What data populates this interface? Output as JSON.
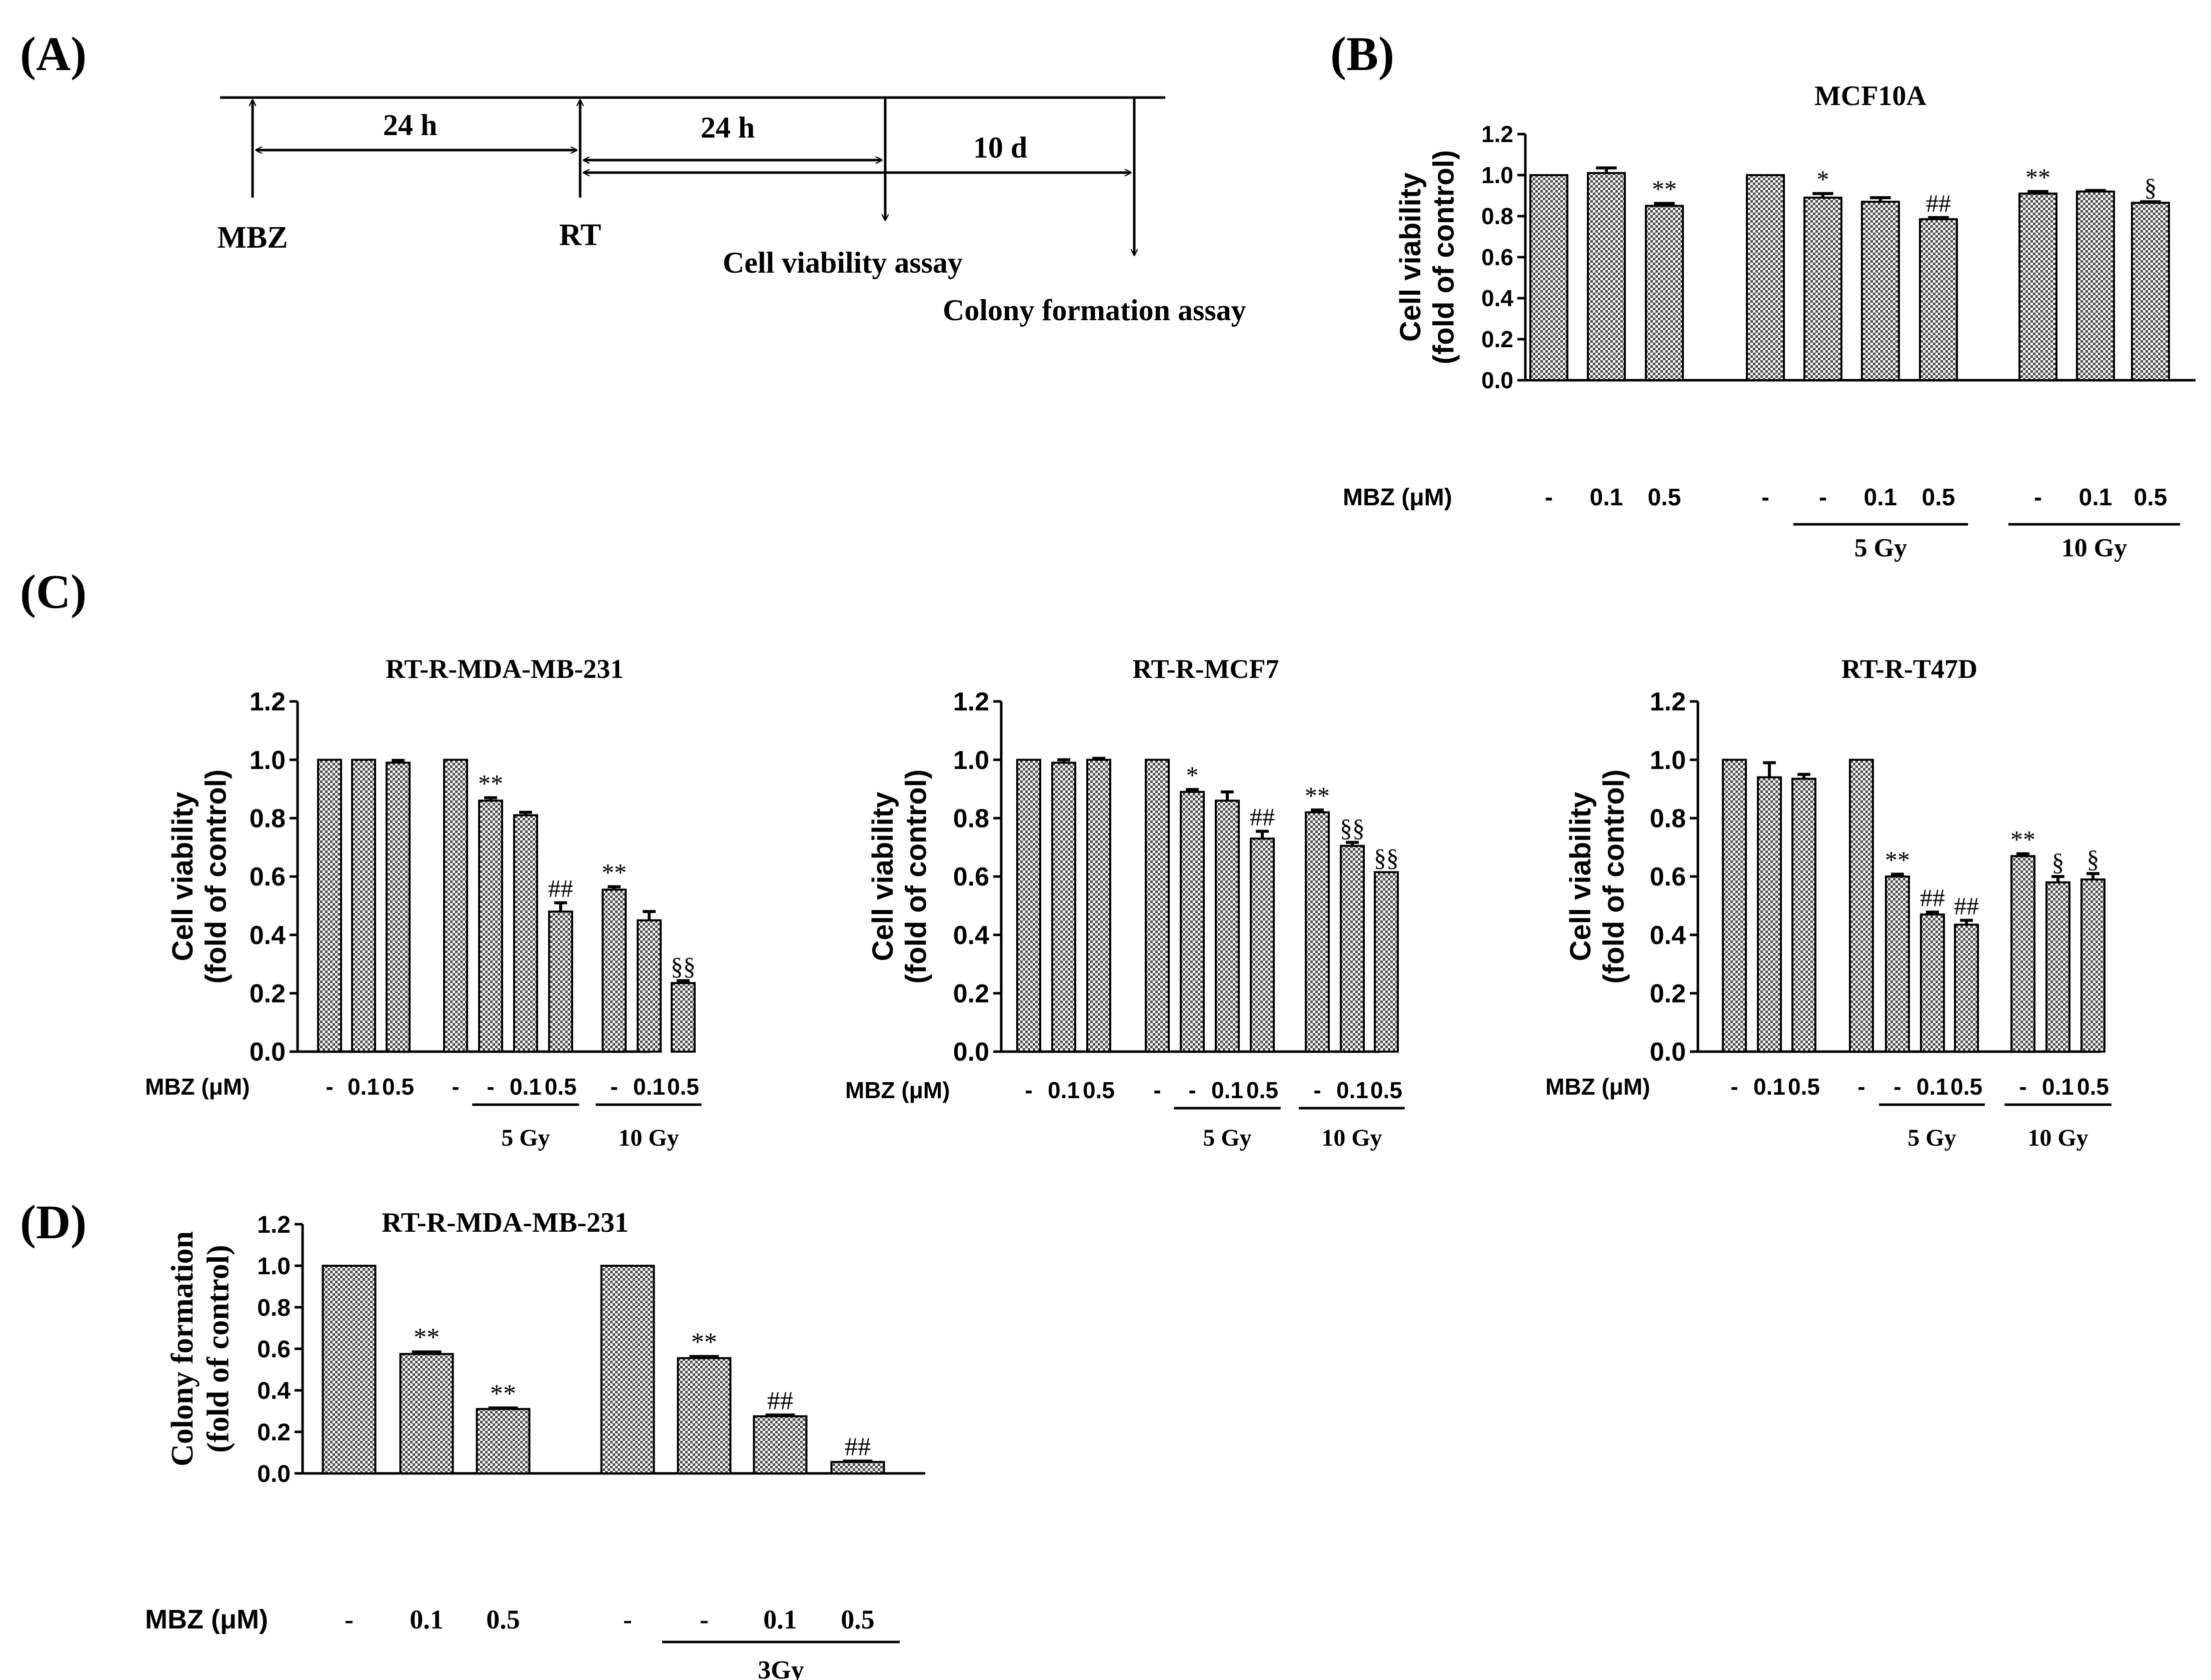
{
  "figure": {
    "colors": {
      "ink": "#000000",
      "bar_fill": "#b8b8b8",
      "background": "#ffffff"
    }
  },
  "panel_labels": [
    "(A)",
    "(B)",
    "(C)",
    "(D)"
  ],
  "timeline": {
    "intervals": [
      "24 h",
      "24 h",
      "10 d"
    ],
    "events": [
      "MBZ",
      "RT",
      "Cell viability  assay",
      "Colony  formation  assay"
    ]
  },
  "chart_data": [
    {
      "id": "B",
      "type": "bar",
      "title": "MCF10A",
      "ylabel": [
        "Cell viability",
        "(fold of control)"
      ],
      "ylim": [
        0,
        1.2
      ],
      "yticks": [
        "0.0",
        "0.2",
        "0.4",
        "0.6",
        "0.8",
        "1.0",
        "1.2"
      ],
      "x_prefix": "MBZ  (μM)",
      "categories": [
        "-",
        "0.1",
        "0.5",
        "-",
        "-",
        "0.1",
        "0.5",
        "-",
        "0.1",
        "0.5"
      ],
      "values": [
        1.0,
        1.01,
        0.85,
        1.0,
        0.89,
        0.87,
        0.785,
        0.91,
        0.92,
        0.865
      ],
      "errors": [
        0,
        0.025,
        0.012,
        0,
        0.02,
        0.02,
        0.008,
        0.01,
        0.005,
        0.005
      ],
      "annotations": [
        "",
        "",
        "**",
        "",
        "*",
        "",
        "##",
        "**",
        "",
        "§"
      ],
      "groups": [
        {
          "label": "5 Gy"
        },
        {
          "label": "10 Gy"
        }
      ]
    },
    {
      "id": "C1",
      "type": "bar",
      "title": "RT-R-MDA-MB-231",
      "ylabel": [
        "Cell viability",
        "(fold of control)"
      ],
      "ylim": [
        0,
        1.2
      ],
      "yticks": [
        "0.0",
        "0.2",
        "0.4",
        "0.6",
        "0.8",
        "1.0",
        "1.2"
      ],
      "x_prefix": "MBZ  (μM)",
      "categories": [
        "-",
        "0.1",
        "0.5",
        "-",
        "-",
        "0.1",
        "0.5",
        "-",
        "0.1",
        "0.5"
      ],
      "values": [
        1.0,
        1.0,
        0.99,
        1.0,
        0.86,
        0.81,
        0.48,
        0.555,
        0.45,
        0.235
      ],
      "errors": [
        0,
        0,
        0.008,
        0,
        0.01,
        0.01,
        0.03,
        0.01,
        0.03,
        0.008
      ],
      "annotations": [
        "",
        "",
        "",
        "",
        "**",
        "",
        "##",
        "**",
        "",
        "§§"
      ],
      "groups": [
        {
          "label": "5 Gy"
        },
        {
          "label": "10 Gy"
        }
      ]
    },
    {
      "id": "C2",
      "type": "bar",
      "title": "RT-R-MCF7",
      "ylabel": [
        "Cell viability",
        "(fold of control)"
      ],
      "ylim": [
        0,
        1.2
      ],
      "yticks": [
        "0.0",
        "0.2",
        "0.4",
        "0.6",
        "0.8",
        "1.0",
        "1.2"
      ],
      "x_prefix": "MBZ  (μM)",
      "categories": [
        "-",
        "0.1",
        "0.5",
        "-",
        "-",
        "0.1",
        "0.5",
        "-",
        "0.1",
        "0.5"
      ],
      "values": [
        1.0,
        0.99,
        1.0,
        1.0,
        0.89,
        0.86,
        0.73,
        0.82,
        0.705,
        0.615
      ],
      "errors": [
        0,
        0.01,
        0.005,
        0,
        0.008,
        0.03,
        0.025,
        0.008,
        0.012,
        0
      ],
      "annotations": [
        "",
        "",
        "",
        "",
        "*",
        "",
        "##",
        "**",
        "§§",
        "§§"
      ],
      "groups": [
        {
          "label": "5 Gy"
        },
        {
          "label": "10 Gy"
        }
      ]
    },
    {
      "id": "C3",
      "type": "bar",
      "title": "RT-R-T47D",
      "ylabel": [
        "Cell viability",
        "(fold of control)"
      ],
      "ylim": [
        0,
        1.2
      ],
      "yticks": [
        "0.0",
        "0.2",
        "0.4",
        "0.6",
        "0.8",
        "1.0",
        "1.2"
      ],
      "x_prefix": "MBZ  (μM)",
      "categories": [
        "-",
        "0.1",
        "0.5",
        "-",
        "-",
        "0.1",
        "0.5",
        "-",
        "0.1",
        "0.5"
      ],
      "values": [
        1.0,
        0.94,
        0.935,
        1.0,
        0.6,
        0.47,
        0.435,
        0.67,
        0.58,
        0.59
      ],
      "errors": [
        0,
        0.05,
        0.015,
        0,
        0.008,
        0.008,
        0.015,
        0.008,
        0.02,
        0.02
      ],
      "annotations": [
        "",
        "",
        "",
        "",
        "**",
        "##",
        "##",
        "**",
        "§",
        "§"
      ],
      "groups": [
        {
          "label": "5 Gy"
        },
        {
          "label": "10 Gy"
        }
      ]
    },
    {
      "id": "D",
      "type": "bar",
      "title": "RT-R-MDA-MB-231",
      "ylabel": [
        "Colony formation",
        "(fold of control)"
      ],
      "ylim": [
        0,
        1.2
      ],
      "yticks": [
        "0.0",
        "0.2",
        "0.4",
        "0.6",
        "0.8",
        "1.0",
        "1.2"
      ],
      "x_prefix": "MBZ  (μM)",
      "categories": [
        "-",
        "0.1",
        "0.5",
        "-",
        "-",
        "0.1",
        "0.5"
      ],
      "values": [
        1.0,
        0.575,
        0.31,
        1.0,
        0.555,
        0.275,
        0.055
      ],
      "errors": [
        0,
        0.01,
        0.005,
        0,
        0.008,
        0.006,
        0.004
      ],
      "annotations": [
        "",
        "**",
        "**",
        "",
        "**",
        "##",
        "##"
      ],
      "groups": [
        {
          "label": "3Gy"
        }
      ]
    }
  ]
}
